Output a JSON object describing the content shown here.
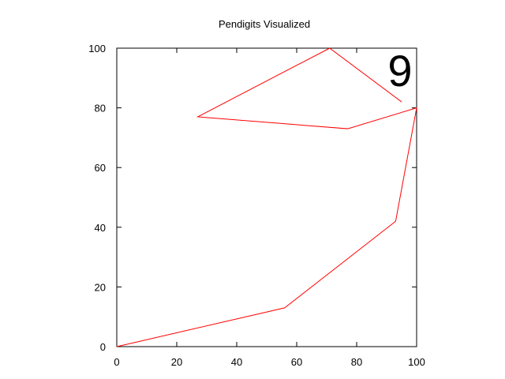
{
  "chart_data": {
    "type": "line",
    "title": "Pendigits Visualized",
    "xlabel": "",
    "ylabel": "",
    "xlim": [
      0,
      100
    ],
    "ylim": [
      0,
      100
    ],
    "xticks": [
      "0",
      "20",
      "40",
      "60",
      "80",
      "100"
    ],
    "yticks": [
      "0",
      "20",
      "40",
      "60",
      "80",
      "100"
    ],
    "grid": false,
    "series": [
      {
        "color": "#ff0000",
        "x": [
          95,
          71,
          27,
          77,
          100,
          93,
          56,
          0
        ],
        "y": [
          82,
          100,
          77,
          73,
          80,
          42,
          13,
          0
        ]
      }
    ],
    "annotation": {
      "text": "9",
      "position": "top-right"
    },
    "colors": {
      "axes": "#000000",
      "line": "#ff0000",
      "background": "#ffffff"
    }
  }
}
